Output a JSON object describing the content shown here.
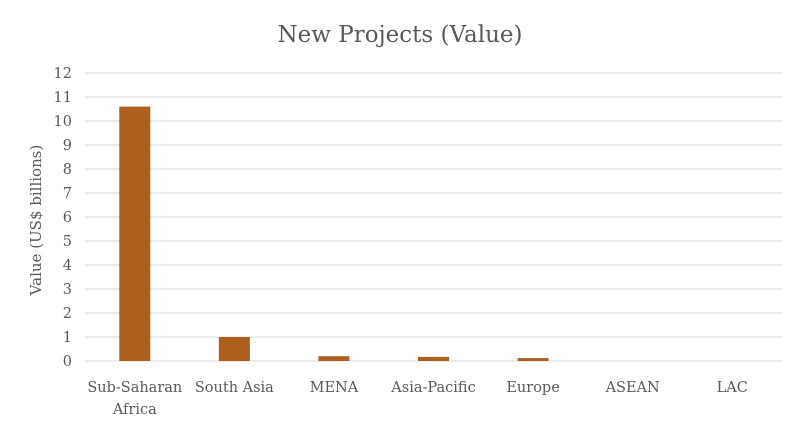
{
  "chart_data": {
    "type": "bar",
    "title": "New Projects (Value)",
    "xlabel": "",
    "ylabel": "Value (US$ billions)",
    "categories": [
      [
        "Sub-Saharan",
        "Africa"
      ],
      [
        "South Asia"
      ],
      [
        "MENA"
      ],
      [
        "Asia-Pacific"
      ],
      [
        "Europe"
      ],
      [
        "ASEAN"
      ],
      [
        "LAC"
      ]
    ],
    "values": [
      10.6,
      1.0,
      0.2,
      0.17,
      0.12,
      0,
      0
    ],
    "ylim": [
      0,
      12
    ],
    "yticks": [
      "0",
      "1",
      "2",
      "3",
      "4",
      "5",
      "6",
      "7",
      "8",
      "9",
      "10",
      "11",
      "12"
    ],
    "grid": true,
    "legend": "none",
    "bar_color": "#AD5F1E"
  }
}
